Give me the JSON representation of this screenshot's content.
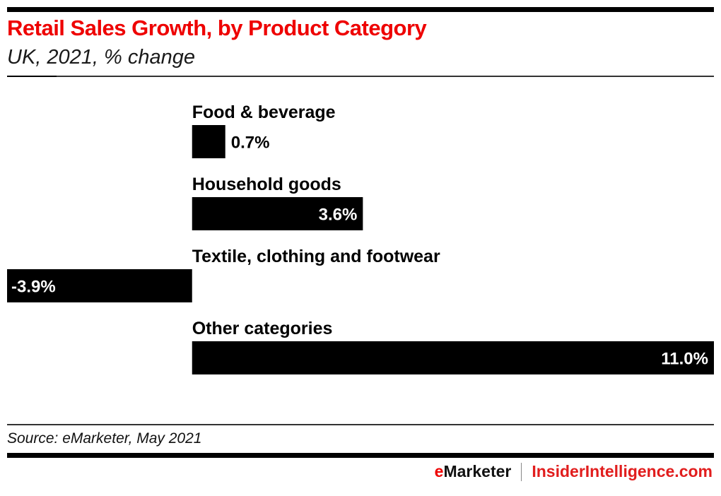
{
  "header": {
    "title": "Retail Sales Growth, by Product Category",
    "subtitle": "UK, 2021, % change"
  },
  "chart_data": {
    "type": "bar",
    "orientation": "horizontal",
    "title": "Retail Sales Growth, by Product Category",
    "subtitle": "UK, 2021, % change",
    "xlabel": "",
    "ylabel": "",
    "categories": [
      "Food & beverage",
      "Household goods",
      "Textile, clothing and footwear",
      "Other categories"
    ],
    "values": [
      0.7,
      3.6,
      -3.9,
      11.0
    ],
    "value_labels": [
      "0.7%",
      "3.6%",
      "-3.9%",
      "11.0%"
    ],
    "xlim": [
      -3.9,
      11.0
    ],
    "grid": false,
    "legend": "none",
    "bar_color": "#000000"
  },
  "footer": {
    "source": "Source: eMarketer, May 2021",
    "brand_e": "e",
    "brand_rest": "Marketer",
    "brand_site": "InsiderIntelligence.com"
  },
  "colors": {
    "accent": "#ee0000",
    "bar": "#000000",
    "text": "#000000"
  }
}
